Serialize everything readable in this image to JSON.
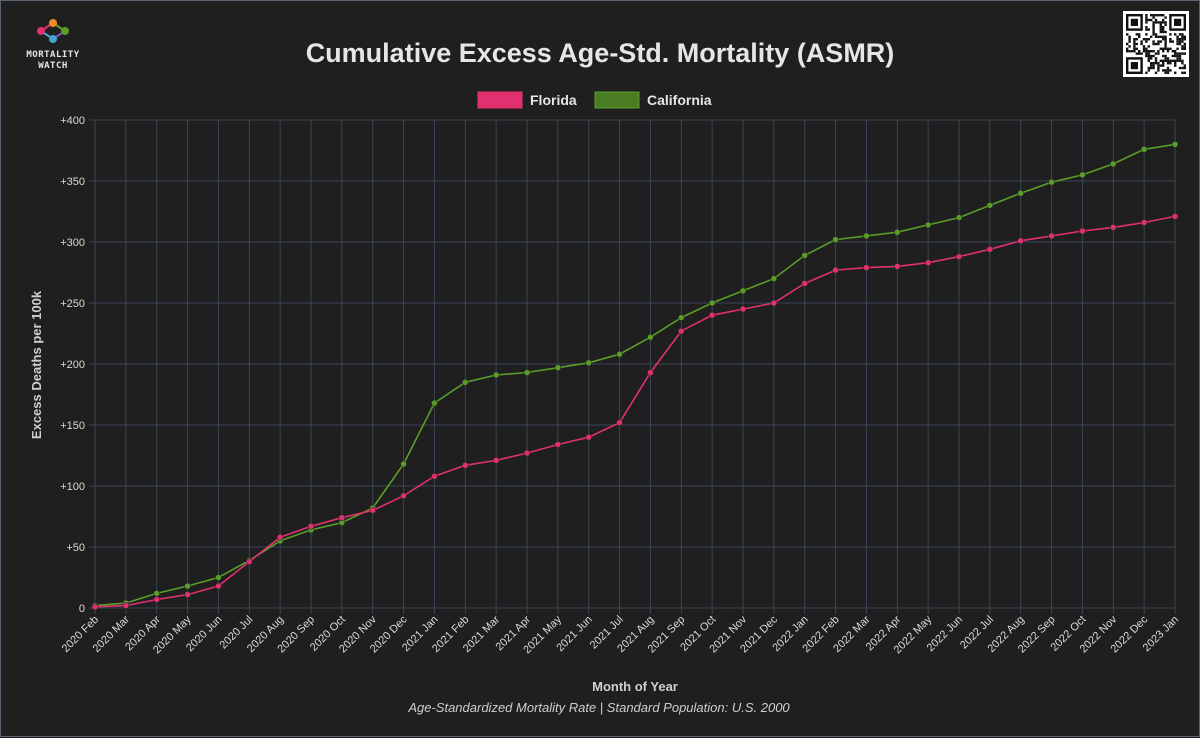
{
  "logo": {
    "line1": "MORTALITY",
    "line2": "WATCH"
  },
  "colors": {
    "background": "#1f1f1f",
    "grid": "#3a4656",
    "florida": "#e0306f",
    "california": "#5a9e28",
    "text": "#e6e6e6"
  },
  "chart_data": {
    "type": "line",
    "title": "Cumulative Excess Age-Std. Mortality (ASMR)",
    "subtitle": "Age-Standardized Mortality Rate | Standard Population: U.S. 2000",
    "xlabel": "Month of Year",
    "ylabel": "Excess Deaths per 100k",
    "ylim": [
      0,
      400
    ],
    "yticks": [
      {
        "value": 0,
        "label": "0"
      },
      {
        "value": 50,
        "label": "+50"
      },
      {
        "value": 100,
        "label": "+100"
      },
      {
        "value": 150,
        "label": "+150"
      },
      {
        "value": 200,
        "label": "+200"
      },
      {
        "value": 250,
        "label": "+250"
      },
      {
        "value": 300,
        "label": "+300"
      },
      {
        "value": 350,
        "label": "+350"
      },
      {
        "value": 400,
        "label": "+400"
      }
    ],
    "grid": true,
    "legend_position": "top-center",
    "categories": [
      "2020 Feb",
      "2020 Mar",
      "2020 Apr",
      "2020 May",
      "2020 Jun",
      "2020 Jul",
      "2020 Aug",
      "2020 Sep",
      "2020 Oct",
      "2020 Nov",
      "2020 Dec",
      "2021 Jan",
      "2021 Feb",
      "2021 Mar",
      "2021 Apr",
      "2021 May",
      "2021 Jun",
      "2021 Jul",
      "2021 Aug",
      "2021 Sep",
      "2021 Oct",
      "2021 Nov",
      "2021 Dec",
      "2022 Jan",
      "2022 Feb",
      "2022 Mar",
      "2022 Apr",
      "2022 May",
      "2022 Jun",
      "2022 Jul",
      "2022 Aug",
      "2022 Sep",
      "2022 Oct",
      "2022 Nov",
      "2022 Dec",
      "2023 Jan"
    ],
    "series": [
      {
        "name": "Florida",
        "color": "#e0306f",
        "values": [
          1,
          2,
          7,
          11,
          18,
          38,
          58,
          67,
          74,
          80,
          92,
          108,
          117,
          121,
          127,
          134,
          140,
          152,
          193,
          227,
          240,
          245,
          250,
          266,
          277,
          279,
          280,
          283,
          288,
          294,
          301,
          305,
          309,
          312,
          316,
          321
        ]
      },
      {
        "name": "California",
        "color": "#5a9e28",
        "values": [
          2,
          4,
          12,
          18,
          25,
          39,
          55,
          64,
          70,
          82,
          118,
          168,
          185,
          191,
          193,
          197,
          201,
          208,
          222,
          238,
          250,
          260,
          270,
          289,
          302,
          305,
          308,
          314,
          320,
          330,
          340,
          349,
          355,
          364,
          376,
          380
        ]
      }
    ]
  }
}
